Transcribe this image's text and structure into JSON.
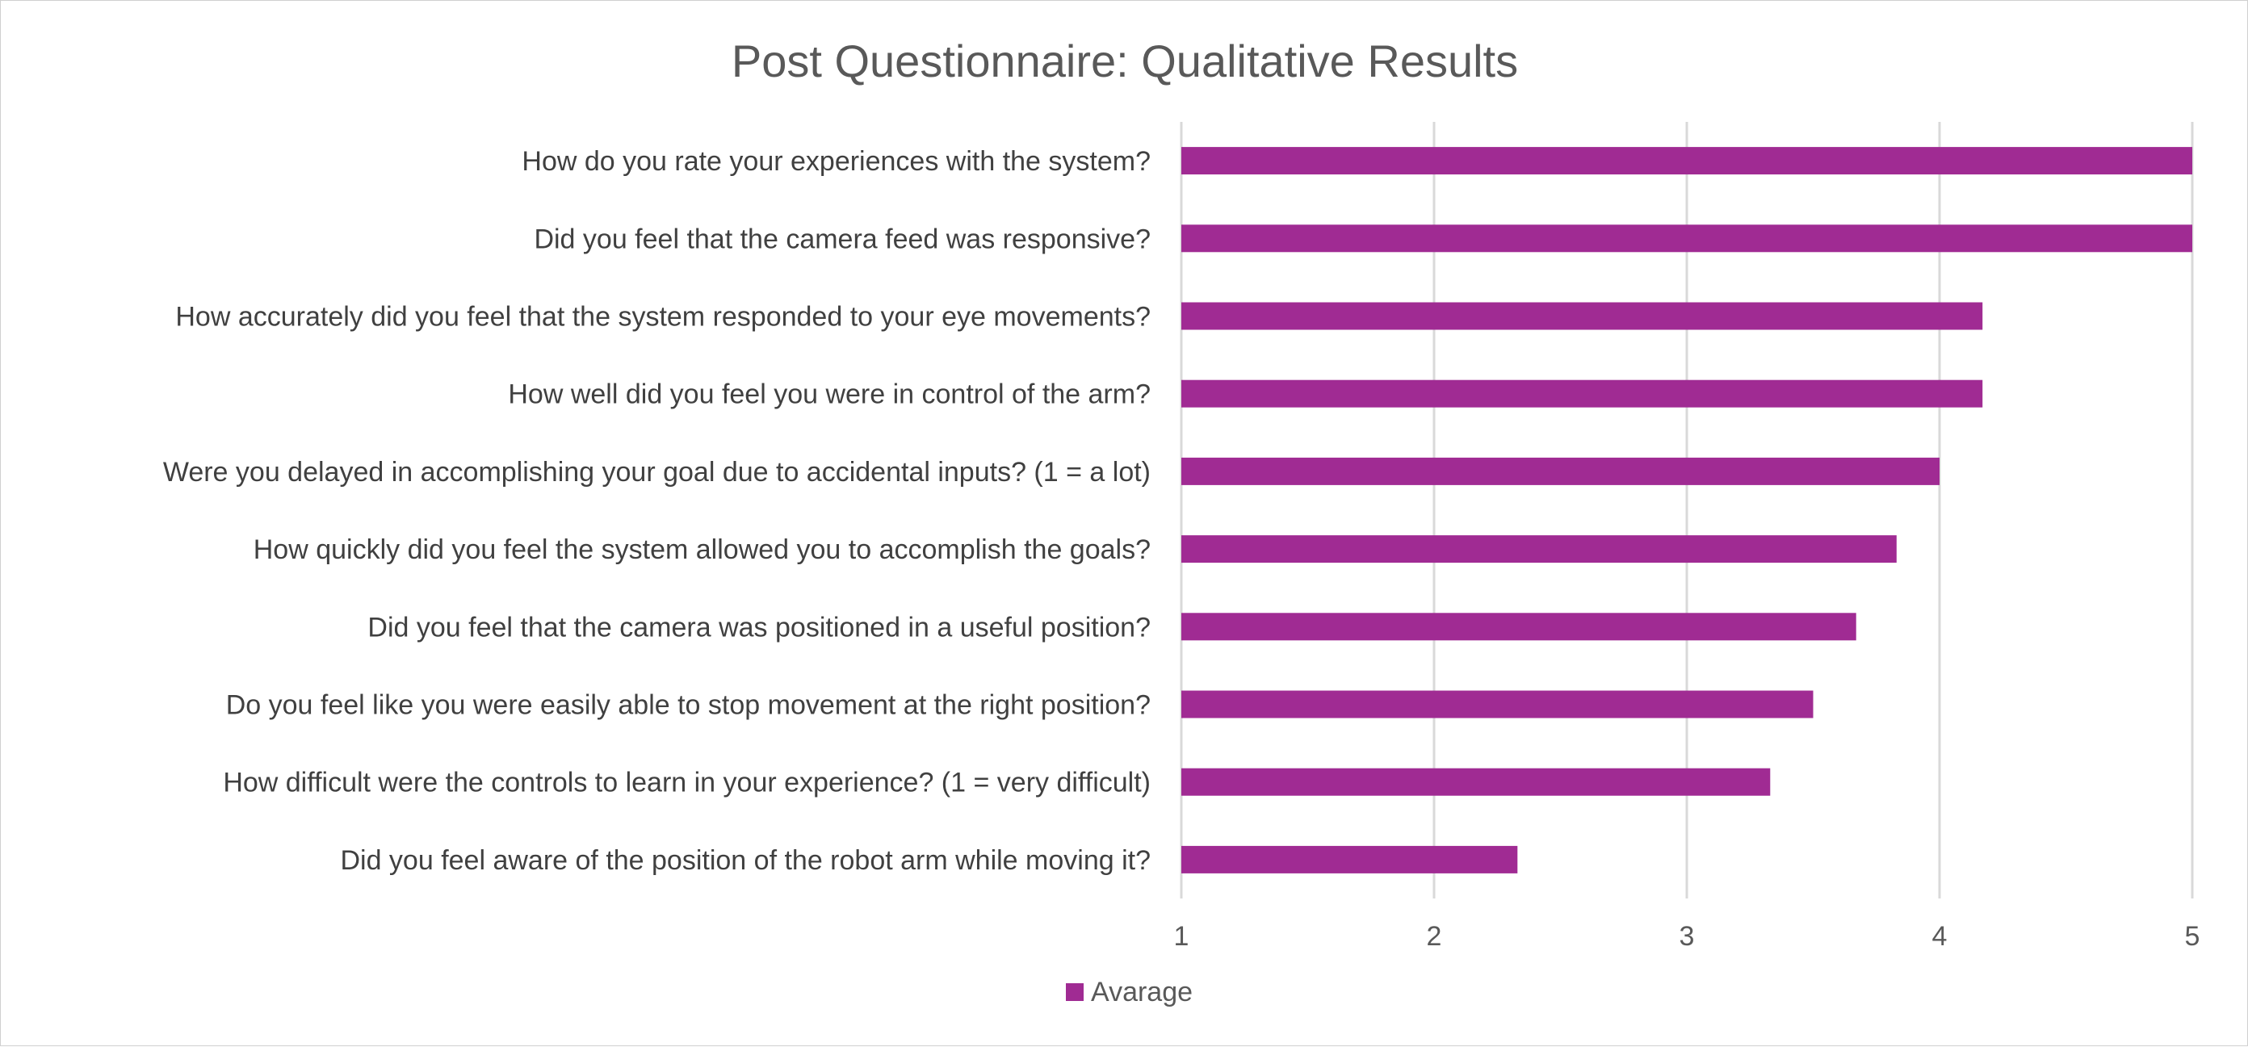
{
  "chart_data": {
    "type": "bar",
    "orientation": "horizontal",
    "title": "Post Questionnaire: Qualitative Results",
    "categories": [
      "How do you rate your experiences with the system?",
      "Did you feel that the camera feed was responsive?",
      "How accurately did you feel that the system responded to your eye movements?",
      "How well did you feel you were in control of the arm?",
      "Were you delayed in accomplishing your goal due to accidental inputs? (1 = a lot)",
      "How quickly did you feel the system allowed you to accomplish the goals?",
      "Did you feel that the camera was positioned in a useful position?",
      "Do you feel like you were easily able to stop movement at the right position?",
      "How difficult were the controls to learn in your experience? (1 = very difficult)",
      "Did you feel aware of the position of the robot arm while moving it?"
    ],
    "series": [
      {
        "name": "Avarage",
        "color": "#A02B93",
        "values": [
          5.0,
          5.0,
          4.17,
          4.17,
          4.0,
          3.83,
          3.67,
          3.5,
          3.33,
          2.33
        ]
      }
    ],
    "xlim": [
      1,
      5
    ],
    "xticks": [
      "1",
      "2",
      "3",
      "4",
      "5"
    ],
    "xlabel": "",
    "ylabel": "",
    "grid": "vertical",
    "legend_position": "bottom"
  }
}
